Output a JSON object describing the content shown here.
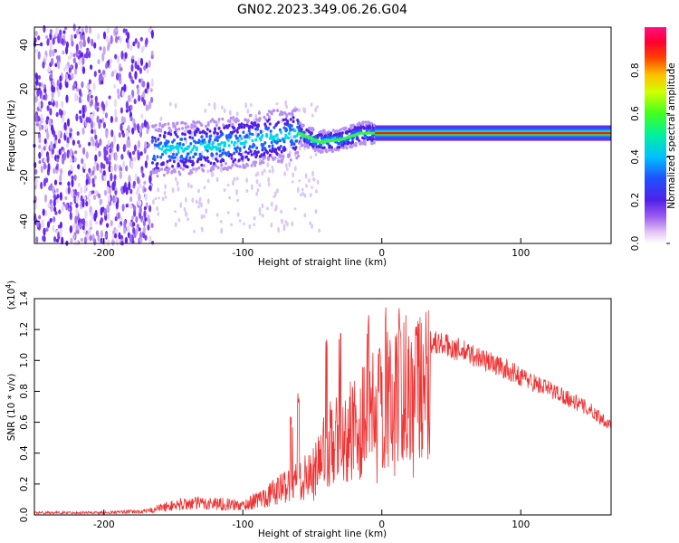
{
  "title": "GN02.2023.349.06.26.G04",
  "chart_data": [
    {
      "type": "heatmap",
      "panel": "top",
      "xlabel": "Height of straight line (km)",
      "ylabel": "Frequency (Hz)",
      "xlim": [
        -250,
        165
      ],
      "ylim": [
        -50,
        48
      ],
      "xticks": [
        -200,
        -100,
        0,
        100
      ],
      "yticks": [
        -40,
        -20,
        0,
        20,
        40
      ],
      "colorbar": {
        "label": "Normalized spectral amplitude",
        "range": [
          0,
          1
        ],
        "ticks": [
          0.0,
          0.2,
          0.4,
          0.6,
          0.8
        ]
      },
      "description_series": [
        {
          "name": "noise-region",
          "x_range": [
            -250,
            -165
          ],
          "amplitude": 0.15
        },
        {
          "name": "signal-trace",
          "points": [
            [
              -165,
              -8
            ],
            [
              -140,
              -7
            ],
            [
              -110,
              -5
            ],
            [
              -80,
              -2
            ],
            [
              -60,
              0
            ],
            [
              -45,
              -4
            ],
            [
              -30,
              -3
            ],
            [
              -15,
              0
            ],
            [
              0,
              0
            ],
            [
              165,
              0
            ]
          ]
        }
      ]
    },
    {
      "type": "line",
      "panel": "bottom",
      "xlabel": "Height of straight line (km)",
      "ylabel": "SNR (10 * v/v)",
      "yscale_label": "(x10",
      "yscale_exp": "4",
      "yscale_close": ")",
      "xlim": [
        -250,
        165
      ],
      "ylim": [
        0,
        1.4
      ],
      "xticks": [
        -200,
        -100,
        0,
        100
      ],
      "yticks": [
        0.0,
        0.2,
        0.4,
        0.6,
        0.8,
        1.0,
        1.2,
        1.4
      ],
      "color": "#ee3333",
      "envelope": [
        [
          -250,
          0.02
        ],
        [
          -200,
          0.02
        ],
        [
          -170,
          0.03
        ],
        [
          -160,
          0.06
        ],
        [
          -140,
          0.1
        ],
        [
          -120,
          0.1
        ],
        [
          -100,
          0.08
        ],
        [
          -80,
          0.18
        ],
        [
          -70,
          0.25
        ],
        [
          -60,
          0.3
        ],
        [
          -50,
          0.35
        ],
        [
          -45,
          0.5
        ],
        [
          -40,
          0.6
        ],
        [
          -30,
          0.65
        ],
        [
          -20,
          0.75
        ],
        [
          -10,
          0.85
        ],
        [
          0,
          0.95
        ],
        [
          10,
          1.05
        ],
        [
          20,
          1.12
        ],
        [
          35,
          1.16
        ],
        [
          50,
          1.12
        ],
        [
          70,
          1.05
        ],
        [
          90,
          0.97
        ],
        [
          110,
          0.88
        ],
        [
          130,
          0.8
        ],
        [
          150,
          0.7
        ],
        [
          165,
          0.6
        ]
      ],
      "spikes": [
        [
          -40,
          1.2
        ],
        [
          -30,
          1.2
        ],
        [
          -60,
          0.8
        ],
        [
          -65,
          0.65
        ],
        [
          -10,
          1.35
        ],
        [
          3,
          1.4
        ],
        [
          13,
          1.35
        ]
      ]
    }
  ]
}
